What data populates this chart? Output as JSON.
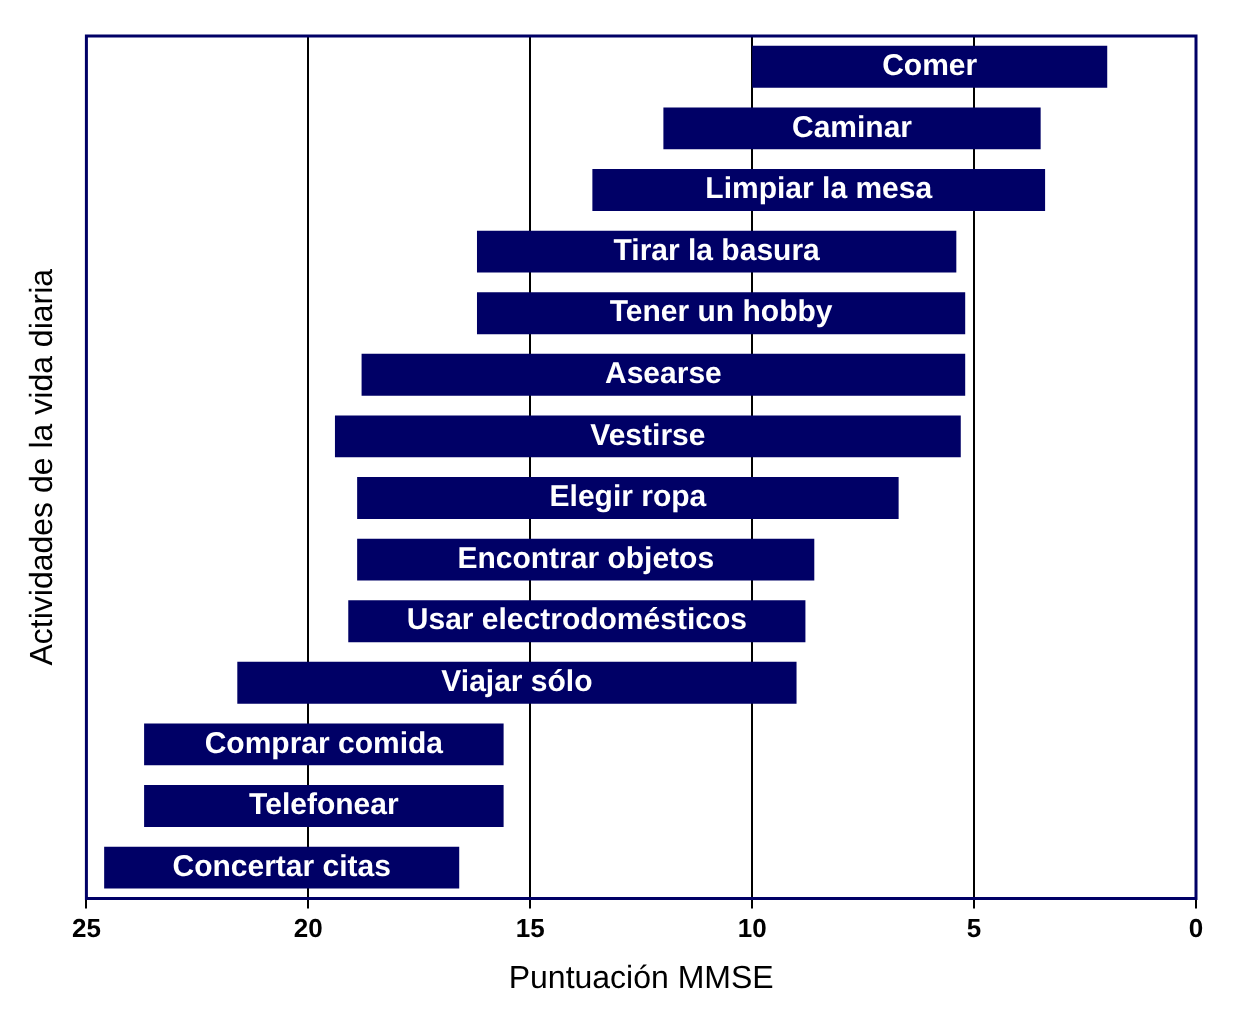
{
  "chart_data": {
    "type": "bar",
    "orientation": "horizontal",
    "xlabel": "Puntuación MMSE",
    "ylabel": "Actividades de la vida diaria",
    "categories": [
      "Comer",
      "Caminar",
      "Limpiar la mesa",
      "Tirar la basura",
      "Tener un hobby",
      "Asearse",
      "Vestirse",
      "Elegir ropa",
      "Encontrar objetos",
      "Usar electrodomésticos",
      "Viajar sólo",
      "Comprar comida",
      "Telefonear",
      "Concertar citas"
    ],
    "base": [
      2,
      3.5,
      3.4,
      5.4,
      5.2,
      5.2,
      5.3,
      6.7,
      8.6,
      8.8,
      9,
      15.6,
      15.6,
      16.6
    ],
    "values": [
      8,
      8.5,
      10.2,
      10.8,
      11,
      13.6,
      14.1,
      12.2,
      10.3,
      10.3,
      12.6,
      8.1,
      8.1,
      8
    ],
    "color": "#000066",
    "xlim": [
      25,
      0
    ],
    "xticks": [
      25,
      20,
      15,
      10,
      5,
      0
    ],
    "grid": "x",
    "tick_labels": "x"
  }
}
